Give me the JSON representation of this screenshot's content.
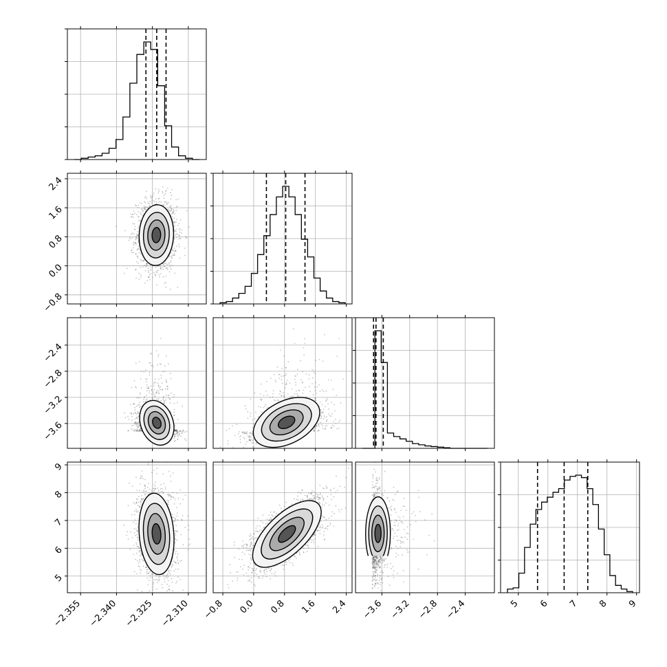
{
  "chart_data": {
    "type": "corner",
    "colors": {
      "line": "#000000",
      "grid": "#b0b0b0",
      "scatter": "#555555",
      "background": "#ffffff"
    },
    "grid": true,
    "variables": [
      {
        "range": [
          -2.3605,
          -2.3025
        ],
        "ticks": [
          -2.355,
          -2.34,
          -2.325,
          -2.31
        ],
        "tick_labels": [
          "−2.355",
          "−2.340",
          "−2.325",
          "−2.310"
        ],
        "quantiles": [
          -2.3277,
          -2.3232,
          -2.3193
        ],
        "histogram": [
          0,
          1,
          2,
          3,
          5,
          9,
          16,
          34,
          61,
          84,
          94,
          88,
          59,
          27,
          10,
          3,
          1,
          0
        ],
        "mean": -2.3232,
        "sd": 0.0042
      },
      {
        "range": [
          -1.05,
          2.55
        ],
        "ticks": [
          -0.8,
          0.0,
          0.8,
          1.6,
          2.4
        ],
        "tick_labels": [
          "−0.8",
          "0.0",
          "0.8",
          "1.6",
          "2.4"
        ],
        "quantiles": [
          0.33,
          0.83,
          1.33
        ],
        "histogram": [
          1,
          2,
          5,
          9,
          15,
          26,
          42,
          58,
          76,
          91,
          100,
          91,
          76,
          55,
          40,
          22,
          11,
          5,
          2,
          1
        ],
        "mean": 0.85,
        "sd": 0.5
      },
      {
        "range": [
          -3.98,
          -1.98
        ],
        "ticks": [
          -3.6,
          -3.2,
          -2.8,
          -2.4
        ],
        "tick_labels": [
          "−3.6",
          "−3.2",
          "−2.8",
          "−2.4"
        ],
        "quantiles": [
          -3.72,
          -3.685,
          -3.58
        ],
        "histogram": [
          0,
          0,
          100,
          73,
          13,
          10,
          8,
          6,
          4,
          3,
          2,
          1.5,
          1,
          0.5,
          0,
          0,
          0,
          0,
          0,
          0
        ],
        "mean": -3.69,
        "sd": 0.05
      },
      {
        "range": [
          4.4,
          9.1
        ],
        "ticks": [
          5,
          6,
          7,
          8,
          9
        ],
        "tick_labels": [
          "5",
          "6",
          "7",
          "8",
          "9"
        ],
        "quantiles": [
          5.65,
          6.55,
          7.35
        ],
        "histogram": [
          3,
          4,
          16,
          37,
          56,
          68,
          74,
          78,
          82,
          85,
          92,
          95,
          96,
          94,
          85,
          72,
          52,
          31,
          14,
          6,
          3,
          1
        ],
        "mean": 6.5,
        "sd": 0.85
      }
    ],
    "y_tick_rows": {
      "1": {
        "ticks": [
          -0.8,
          0.0,
          0.8,
          1.6,
          2.4
        ],
        "tick_labels": [
          "−0.8",
          "0.0",
          "0.8",
          "1.6",
          "2.4"
        ]
      },
      "2": {
        "ticks": [
          -3.6,
          -3.2,
          -2.8,
          -2.4
        ],
        "tick_labels": [
          "−3.6",
          "−3.2",
          "−2.8",
          "−2.4"
        ]
      },
      "3": {
        "ticks": [
          5,
          6,
          7,
          8,
          9
        ],
        "tick_labels": [
          "5",
          "6",
          "7",
          "8",
          "9"
        ]
      }
    },
    "correlations": {
      "0-1": 0.0,
      "0-2": -0.4,
      "1-2": 0.35,
      "0-3": -0.1,
      "1-3": 0.85,
      "2-3": 0.2
    }
  }
}
